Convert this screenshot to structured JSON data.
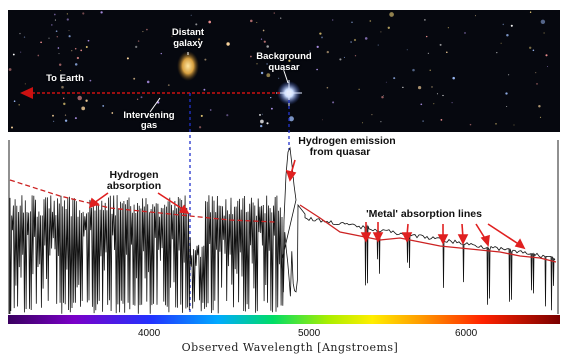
{
  "labels": {
    "to_earth": "To Earth",
    "distant_galaxy_1": "Distant",
    "distant_galaxy_2": "galaxy",
    "background_quasar_1": "Background",
    "background_quasar_2": "quasar",
    "intervening_gas_1": "Intervening",
    "intervening_gas_2": "gas",
    "hydrogen_emission_1": "Hydrogen emission",
    "hydrogen_emission_2": "from quasar",
    "hydrogen_absorption_1": "Hydrogen",
    "hydrogen_absorption_2": "absorption",
    "metal_absorption": "'Metal' absorption lines"
  },
  "axis": {
    "ticks": [
      "4000",
      "5000",
      "6000"
    ],
    "title": "Observed Wavelength [Angstroems]"
  },
  "colors": {
    "sky": "#06080f",
    "spectrum": "#111111",
    "continuum": "#cc2222",
    "arrow": "#cc1111",
    "pointer": "#e02020",
    "guide": "#2233cc",
    "quasar": "#a8c8ff"
  }
}
